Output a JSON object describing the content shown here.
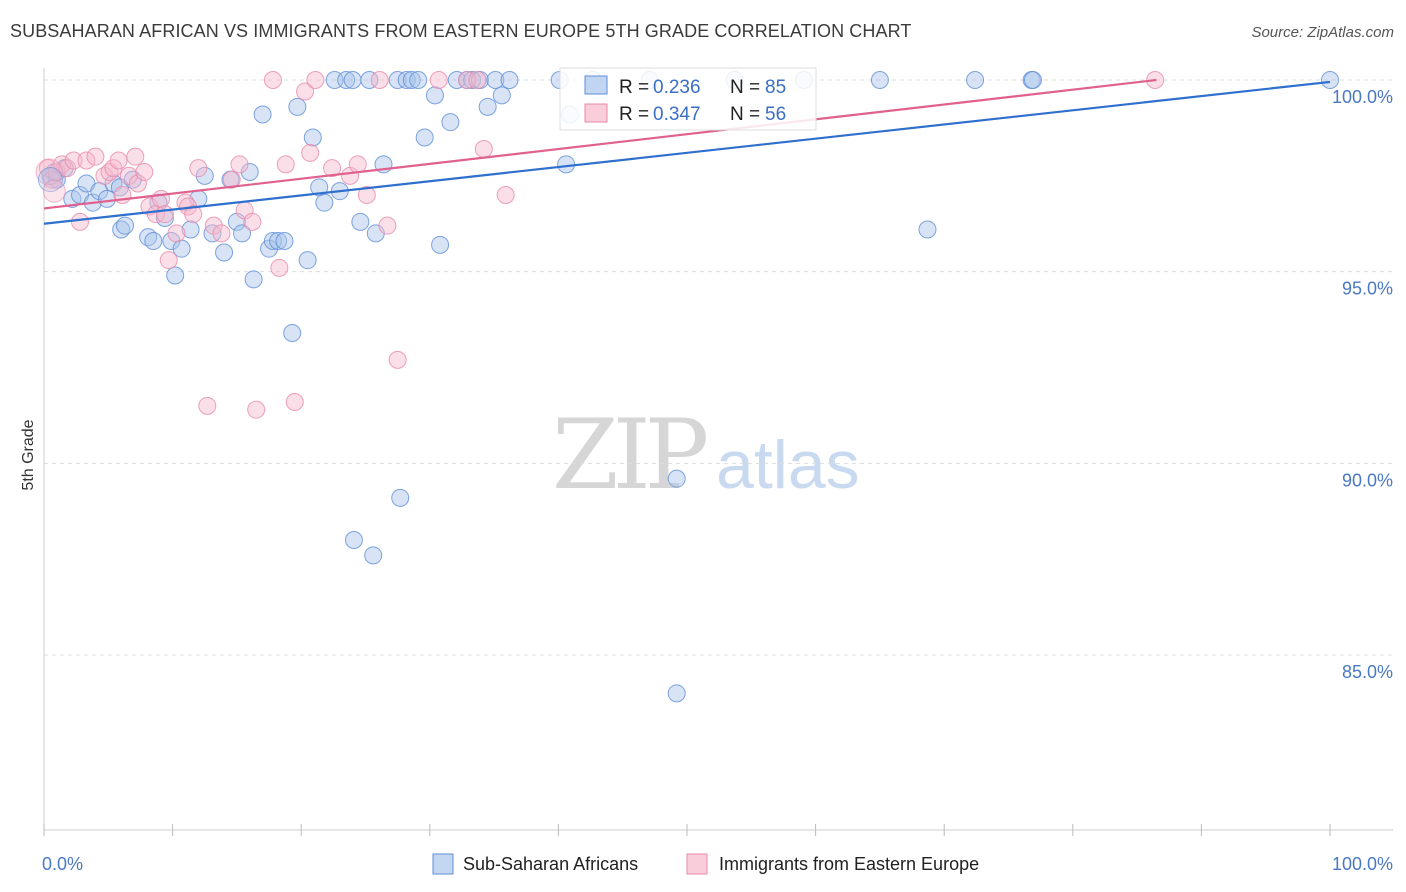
{
  "header": {
    "title": "SUBSAHARAN AFRICAN VS IMMIGRANTS FROM EASTERN EUROPE 5TH GRADE CORRELATION CHART",
    "source": "Source: ZipAtlas.com"
  },
  "watermark": {
    "zip": "ZIP",
    "atlas": "atlas"
  },
  "colors": {
    "blue_fill": "#a9c4ec",
    "blue_stroke": "#5f8fd6",
    "blue_line": "#2f6fce",
    "pink_fill": "#f6b8cb",
    "pink_stroke": "#e98aab",
    "pink_line": "#e0608e",
    "grid": "#dddddd",
    "tick_text": "#4a78c2"
  },
  "chart_data": {
    "type": "scatter",
    "title": "SUBSAHARAN AFRICAN VS IMMIGRANTS FROM EASTERN EUROPE 5TH GRADE CORRELATION CHART",
    "xlabel": "",
    "ylabel": "5th Grade",
    "xlim": [
      0,
      100
    ],
    "ylim": [
      80.5,
      100.8
    ],
    "x_tick_labels": [
      "0.0%",
      "100.0%"
    ],
    "y_ticks": [
      85,
      90,
      95,
      100
    ],
    "y_tick_labels": [
      "85.0%",
      "90.0%",
      "95.0%",
      "100.0%"
    ],
    "grid": true,
    "legend_position": "bottom",
    "stats_box_position": "top-center",
    "series": [
      {
        "name": "Sub-Saharan Africans",
        "color": "blue",
        "R": "0.236",
        "N": "85",
        "trend": {
          "x": [
            0,
            100
          ],
          "y": [
            96.25,
            99.95
          ]
        },
        "points": [
          [
            0.5,
            97.5
          ],
          [
            0.8,
            97.6
          ],
          [
            1.0,
            97.4
          ],
          [
            1.6,
            97.7
          ],
          [
            2.2,
            96.9
          ],
          [
            2.8,
            97.0
          ],
          [
            3.3,
            97.3
          ],
          [
            3.8,
            96.8
          ],
          [
            4.3,
            97.1
          ],
          [
            4.9,
            96.9
          ],
          [
            5.4,
            97.3
          ],
          [
            5.9,
            97.2
          ],
          [
            6.0,
            96.1
          ],
          [
            6.3,
            96.2
          ],
          [
            6.9,
            97.4
          ],
          [
            8.1,
            95.9
          ],
          [
            8.5,
            95.8
          ],
          [
            8.9,
            96.8
          ],
          [
            9.4,
            96.4
          ],
          [
            9.9,
            95.8
          ],
          [
            10.2,
            94.9
          ],
          [
            10.7,
            95.6
          ],
          [
            11.4,
            96.1
          ],
          [
            12.0,
            96.9
          ],
          [
            12.5,
            97.5
          ],
          [
            13.1,
            96.0
          ],
          [
            14.0,
            95.5
          ],
          [
            14.5,
            97.4
          ],
          [
            15.0,
            96.3
          ],
          [
            15.4,
            96.0
          ],
          [
            16.0,
            97.6
          ],
          [
            16.3,
            94.8
          ],
          [
            17.0,
            99.1
          ],
          [
            17.5,
            95.6
          ],
          [
            17.8,
            95.8
          ],
          [
            18.2,
            95.8
          ],
          [
            18.7,
            95.8
          ],
          [
            19.3,
            93.4
          ],
          [
            19.7,
            99.3
          ],
          [
            20.5,
            95.3
          ],
          [
            20.9,
            98.5
          ],
          [
            21.4,
            97.2
          ],
          [
            21.8,
            96.8
          ],
          [
            22.6,
            100.0
          ],
          [
            23.0,
            97.1
          ],
          [
            23.5,
            100.0
          ],
          [
            24.0,
            100.0
          ],
          [
            24.1,
            88.0
          ],
          [
            24.6,
            96.3
          ],
          [
            25.3,
            100.0
          ],
          [
            25.6,
            87.6
          ],
          [
            25.8,
            96.0
          ],
          [
            26.4,
            97.8
          ],
          [
            27.5,
            100.0
          ],
          [
            27.7,
            89.1
          ],
          [
            28.2,
            100.0
          ],
          [
            28.6,
            100.0
          ],
          [
            29.1,
            100.0
          ],
          [
            29.6,
            98.5
          ],
          [
            30.4,
            99.6
          ],
          [
            30.8,
            95.7
          ],
          [
            31.6,
            98.9
          ],
          [
            32.1,
            100.0
          ],
          [
            32.9,
            100.0
          ],
          [
            33.3,
            100.0
          ],
          [
            33.9,
            100.0
          ],
          [
            34.5,
            99.3
          ],
          [
            35.1,
            100.0
          ],
          [
            35.6,
            99.6
          ],
          [
            36.2,
            100.0
          ],
          [
            40.1,
            100.0
          ],
          [
            40.6,
            97.8
          ],
          [
            40.9,
            99.1
          ],
          [
            42.7,
            100.0
          ],
          [
            47.1,
            100.0
          ],
          [
            49.2,
            89.6
          ],
          [
            49.2,
            84.0
          ],
          [
            53.7,
            100.0
          ],
          [
            59.1,
            100.0
          ],
          [
            65.0,
            100.0
          ],
          [
            68.7,
            96.1
          ],
          [
            72.4,
            100.0
          ],
          [
            76.8,
            100.0
          ],
          [
            76.9,
            100.0
          ],
          [
            100.0,
            100.0
          ]
        ]
      },
      {
        "name": "Immigrants from Eastern Europe",
        "color": "pink",
        "R": "0.347",
        "N": "56",
        "trend": {
          "x": [
            0,
            86.5
          ],
          "y": [
            96.65,
            100.0
          ]
        },
        "points": [
          [
            0.3,
            97.7
          ],
          [
            0.6,
            97.4
          ],
          [
            1.0,
            97.6
          ],
          [
            1.4,
            97.8
          ],
          [
            1.8,
            97.7
          ],
          [
            2.3,
            97.9
          ],
          [
            2.8,
            96.3
          ],
          [
            3.3,
            97.9
          ],
          [
            4.0,
            98.0
          ],
          [
            4.7,
            97.5
          ],
          [
            5.1,
            97.6
          ],
          [
            5.4,
            97.7
          ],
          [
            5.8,
            97.9
          ],
          [
            6.1,
            97.0
          ],
          [
            6.6,
            97.5
          ],
          [
            7.1,
            98.0
          ],
          [
            7.3,
            97.3
          ],
          [
            7.8,
            97.6
          ],
          [
            8.2,
            96.7
          ],
          [
            8.7,
            96.5
          ],
          [
            9.1,
            96.9
          ],
          [
            9.4,
            96.5
          ],
          [
            9.7,
            95.3
          ],
          [
            10.3,
            96.0
          ],
          [
            11.0,
            96.8
          ],
          [
            11.2,
            96.7
          ],
          [
            11.6,
            96.5
          ],
          [
            12.0,
            97.7
          ],
          [
            12.7,
            91.5
          ],
          [
            13.2,
            96.2
          ],
          [
            13.8,
            96.0
          ],
          [
            14.6,
            97.4
          ],
          [
            15.2,
            97.8
          ],
          [
            15.6,
            96.6
          ],
          [
            16.2,
            96.3
          ],
          [
            16.5,
            91.4
          ],
          [
            17.8,
            100.0
          ],
          [
            18.3,
            95.1
          ],
          [
            18.8,
            97.8
          ],
          [
            19.5,
            91.6
          ],
          [
            20.3,
            99.7
          ],
          [
            20.7,
            98.1
          ],
          [
            21.1,
            100.0
          ],
          [
            22.4,
            97.7
          ],
          [
            23.8,
            97.5
          ],
          [
            24.4,
            97.8
          ],
          [
            25.1,
            97.0
          ],
          [
            26.1,
            100.0
          ],
          [
            26.7,
            96.2
          ],
          [
            27.5,
            92.7
          ],
          [
            30.7,
            100.0
          ],
          [
            32.9,
            100.0
          ],
          [
            33.7,
            100.0
          ],
          [
            34.2,
            98.2
          ],
          [
            35.9,
            97.0
          ],
          [
            86.4,
            100.0
          ]
        ]
      }
    ]
  },
  "legend": {
    "items": [
      {
        "label": "Sub-Saharan Africans"
      },
      {
        "label": "Immigrants from Eastern Europe"
      }
    ]
  },
  "stats_box": {
    "r_label": "R = ",
    "n_label": "N = "
  }
}
